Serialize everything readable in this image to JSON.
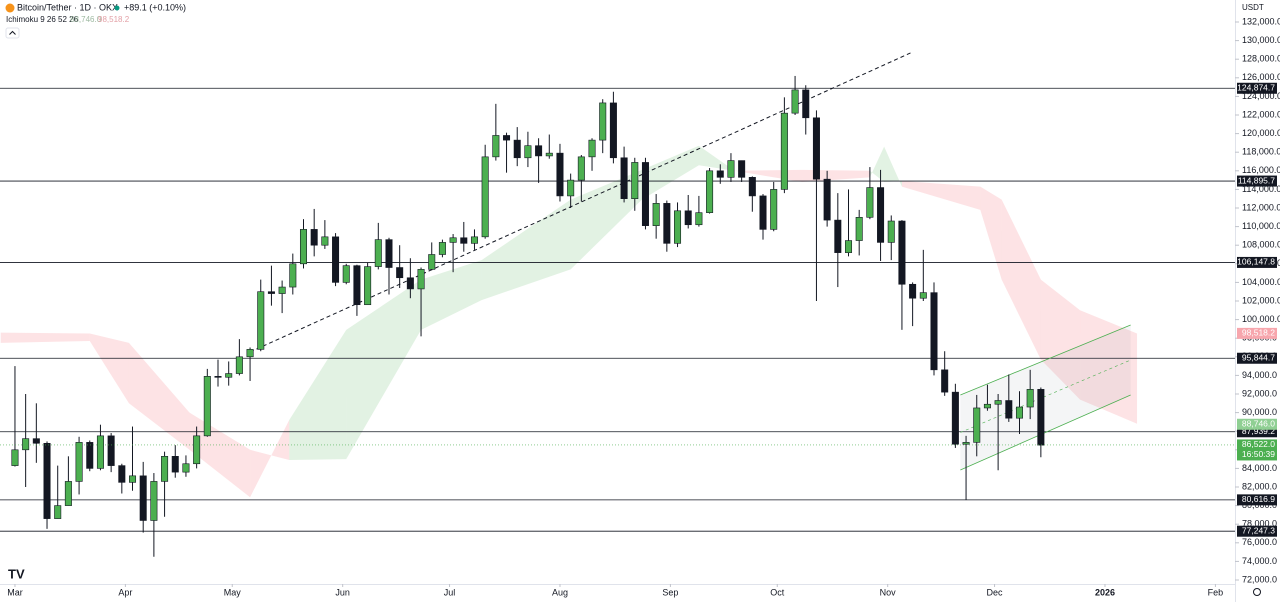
{
  "chart_data": {
    "type": "candlestick",
    "title": "Bitcoin/Tether · 1D · OKX",
    "change": "+89.1 (+0.10%)",
    "indicator": "Ichimoku 9 26 52 26",
    "currency": "USDT",
    "countdown": "16:50:39",
    "up_color": "#4caf50",
    "down_color": "#131722",
    "grid": false,
    "xlim": [
      -4.2,
      342.5
    ],
    "ylim": [
      70925,
      134366
    ],
    "xticks": [
      {
        "value": 0,
        "label": "Mar"
      },
      {
        "value": 31,
        "label": "Apr"
      },
      {
        "value": 61,
        "label": "May"
      },
      {
        "value": 92,
        "label": "Jun"
      },
      {
        "value": 122,
        "label": "Jul"
      },
      {
        "value": 153,
        "label": "Aug"
      },
      {
        "value": 184,
        "label": "Sep"
      },
      {
        "value": 214,
        "label": "Oct"
      },
      {
        "value": 245,
        "label": "Nov"
      },
      {
        "value": 275,
        "label": "Dec"
      },
      {
        "value": 306,
        "label": "2026"
      },
      {
        "value": 337,
        "label": "Feb"
      }
    ],
    "yticks": [
      {
        "value": 72000,
        "label": "72,000.0"
      },
      {
        "value": 74000,
        "label": "74,000.0"
      },
      {
        "value": 76000,
        "label": "76,000.0"
      },
      {
        "value": 78000,
        "label": "78,000.0"
      },
      {
        "value": 80000,
        "label": "80,000.0"
      },
      {
        "value": 82000,
        "label": "82,000.0"
      },
      {
        "value": 84000,
        "label": "84,000.0"
      },
      {
        "value": 86000,
        "label": "86,000.0"
      },
      {
        "value": 88000,
        "label": "88,000.0"
      },
      {
        "value": 90000,
        "label": "90,000.0"
      },
      {
        "value": 92000,
        "label": "92,000.0"
      },
      {
        "value": 94000,
        "label": "94,000.0"
      },
      {
        "value": 96000,
        "label": "96,000.0"
      },
      {
        "value": 98000,
        "label": "98,000.0"
      },
      {
        "value": 100000,
        "label": "100,000.0"
      },
      {
        "value": 102000,
        "label": "102,000.0"
      },
      {
        "value": 104000,
        "label": "104,000.0"
      },
      {
        "value": 106000,
        "label": "106,000.0"
      },
      {
        "value": 108000,
        "label": "108,000.0"
      },
      {
        "value": 110000,
        "label": "110,000.0"
      },
      {
        "value": 112000,
        "label": "112,000.0"
      },
      {
        "value": 114000,
        "label": "114,000.0"
      },
      {
        "value": 116000,
        "label": "116,000.0"
      },
      {
        "value": 118000,
        "label": "118,000.0"
      },
      {
        "value": 120000,
        "label": "120,000.0"
      },
      {
        "value": 122000,
        "label": "122,000.0"
      },
      {
        "value": 124000,
        "label": "124,000.0"
      },
      {
        "value": 126000,
        "label": "126,000.0"
      },
      {
        "value": 128000,
        "label": "128,000.0"
      },
      {
        "value": 130000,
        "label": "130,000.0"
      },
      {
        "value": 132000,
        "label": "132,000.0"
      }
    ],
    "x": [
      0,
      3,
      6,
      9,
      12,
      15,
      18,
      21,
      24,
      27,
      30,
      33,
      36,
      39,
      42,
      45,
      48,
      51,
      54,
      57,
      60,
      63,
      66,
      69,
      72,
      75,
      78,
      81,
      84,
      87,
      90,
      93,
      96,
      99,
      102,
      105,
      108,
      111,
      114,
      117,
      120,
      123,
      126,
      129,
      132,
      135,
      138,
      141,
      144,
      147,
      150,
      153,
      156,
      159,
      162,
      165,
      168,
      171,
      174,
      177,
      180,
      183,
      186,
      189,
      192,
      195,
      198,
      201,
      204,
      207,
      210,
      213,
      216,
      219,
      222,
      225,
      228,
      231,
      234,
      237,
      240,
      243,
      246,
      249,
      252,
      255,
      258,
      261,
      264,
      267,
      270,
      273,
      276,
      279,
      282,
      285,
      288
    ],
    "open": [
      84300,
      86000,
      87200,
      86700,
      78600,
      80000,
      82600,
      86800,
      84000,
      87500,
      84300,
      82500,
      83200,
      78400,
      82600,
      85300,
      83600,
      84500,
      87500,
      93900,
      93800,
      94200,
      96000,
      96800,
      103000,
      102800,
      103500,
      106000,
      109700,
      108000,
      108900,
      104000,
      105800,
      101600,
      105700,
      108600,
      105600,
      104500,
      103300,
      105400,
      107000,
      108300,
      108800,
      108200,
      108900,
      117500,
      119800,
      119300,
      117400,
      118700,
      117600,
      117900,
      113300,
      115000,
      117500,
      119300,
      123300,
      117400,
      113000,
      116900,
      110100,
      112500,
      108200,
      111700,
      110200,
      111500,
      116000,
      115300,
      117100,
      115300,
      113300,
      109700,
      114000,
      122200,
      124700,
      121700,
      115100,
      110700,
      107200,
      108500,
      111000,
      114200,
      108300,
      110600,
      103800,
      102300,
      102900,
      94600,
      92200,
      86600,
      86800,
      90500,
      90900,
      91300,
      89400,
      90600,
      92500
    ],
    "high": [
      95000,
      92000,
      91000,
      86900,
      84300,
      85300,
      87400,
      87000,
      88700,
      87800,
      84500,
      88500,
      84700,
      83500,
      85800,
      86500,
      85400,
      88500,
      94700,
      95700,
      95500,
      97900,
      97000,
      104300,
      105800,
      104200,
      107100,
      110800,
      111900,
      110700,
      109300,
      106000,
      105900,
      106100,
      110400,
      108800,
      108000,
      106600,
      105600,
      108300,
      108600,
      109200,
      110500,
      109700,
      118800,
      123200,
      120100,
      120700,
      120200,
      119500,
      119900,
      118900,
      115700,
      117700,
      119500,
      123700,
      124500,
      118600,
      117400,
      117400,
      113500,
      112800,
      112600,
      113400,
      113300,
      116300,
      116700,
      117900,
      117100,
      115400,
      113500,
      114800,
      123900,
      126200,
      125200,
      122500,
      116000,
      113600,
      114000,
      111800,
      116400,
      116100,
      111200,
      110700,
      104000,
      107500,
      104000,
      96600,
      93100,
      87500,
      91900,
      93000,
      92000,
      94100,
      92300,
      94600,
      92700
    ],
    "low": [
      84200,
      82000,
      84600,
      77500,
      78600,
      80000,
      81200,
      83700,
      83800,
      83600,
      81300,
      81600,
      77100,
      74500,
      78800,
      83000,
      83100,
      84000,
      87400,
      92800,
      92900,
      94000,
      93400,
      96600,
      101500,
      100700,
      102700,
      105500,
      106800,
      107600,
      103600,
      103800,
      100400,
      101600,
      105400,
      102700,
      103400,
      102300,
      98200,
      105300,
      106700,
      105100,
      107300,
      107500,
      108700,
      117100,
      115800,
      116500,
      116400,
      114700,
      117300,
      112700,
      112000,
      112700,
      116000,
      117900,
      116800,
      112600,
      111700,
      109700,
      108700,
      107300,
      107800,
      109800,
      110000,
      111400,
      114600,
      114800,
      114800,
      111600,
      108600,
      109500,
      113600,
      122000,
      119900,
      102000,
      110000,
      103500,
      106800,
      106900,
      110800,
      106300,
      106400,
      98900,
      99300,
      102000,
      94000,
      91800,
      86200,
      80600,
      85300,
      90200,
      83800,
      89000,
      87700,
      89300,
      85200
    ],
    "close": [
      86000,
      87200,
      86700,
      78600,
      80000,
      82600,
      86800,
      84000,
      87500,
      84300,
      82500,
      83200,
      78400,
      82600,
      85300,
      83600,
      84500,
      87500,
      93900,
      93800,
      94200,
      96000,
      96800,
      103000,
      102800,
      103500,
      106000,
      109700,
      108000,
      108900,
      104000,
      105800,
      101600,
      105700,
      108600,
      105600,
      104500,
      103300,
      105400,
      107000,
      108300,
      108800,
      108200,
      108900,
      117500,
      119800,
      119300,
      117400,
      118700,
      117600,
      117900,
      113300,
      115000,
      117500,
      119300,
      123300,
      117400,
      113000,
      116900,
      110100,
      112500,
      108200,
      111700,
      110200,
      111500,
      116000,
      115300,
      117100,
      115300,
      113300,
      109700,
      114000,
      122200,
      124700,
      121700,
      115100,
      110700,
      107200,
      108500,
      111000,
      114200,
      108300,
      110600,
      103800,
      102300,
      102900,
      94600,
      92200,
      86600,
      86800,
      90500,
      90900,
      91300,
      89400,
      90600,
      92500,
      86500
    ],
    "cloud": {
      "up_color": "rgba(76,175,80,0.16)",
      "down_color": "rgba(242,54,69,0.14)",
      "x": [
        -4,
        21,
        32,
        49,
        66,
        77,
        93,
        114,
        131,
        156,
        176,
        192,
        202,
        221,
        240,
        244,
        249,
        271,
        277,
        288,
        299,
        315
      ],
      "span_a": [
        97500,
        97700,
        91000,
        86000,
        80900,
        89200,
        98900,
        104300,
        106400,
        112900,
        116100,
        118700,
        116000,
        114800,
        115300,
        118600,
        114300,
        111800,
        104300,
        95700,
        91400,
        88800
      ],
      "span_b": [
        98600,
        98500,
        97500,
        90000,
        86000,
        84900,
        85000,
        98900,
        102100,
        105400,
        112900,
        116600,
        116000,
        116100,
        116000,
        114800,
        114900,
        114300,
        112900,
        104300,
        101000,
        98500
      ]
    },
    "levels": [
      {
        "value": 124874.7,
        "label": "124,874.7"
      },
      {
        "value": 114895.7,
        "label": "114,895.7"
      },
      {
        "value": 106147.8,
        "label": "106,147.8"
      },
      {
        "value": 95844.7,
        "label": "95,844.7"
      },
      {
        "value": 87939.2,
        "label": "87,939.2"
      },
      {
        "value": 80616.9,
        "label": "80,616.9"
      },
      {
        "value": 77247.3,
        "label": "77,247.3"
      }
    ],
    "cloud_tags": [
      {
        "value": 98518.2,
        "label": "98,518.2",
        "color": "#f7a6ad"
      },
      {
        "value": 88746.0,
        "label": "88,746.0",
        "color": "#8fcf93"
      }
    ],
    "last_price": {
      "value": 86522.0,
      "label": "86,522.0",
      "color": "#4caf50"
    },
    "trendline": {
      "x": [
        66,
        251.4
      ],
      "y": [
        96520,
        128670
      ]
    },
    "channel": {
      "x": [
        265.4,
        313.2
      ],
      "lower": [
        83830,
        91890
      ],
      "upper": [
        91890,
        99420
      ],
      "color": "#4caf50"
    }
  }
}
